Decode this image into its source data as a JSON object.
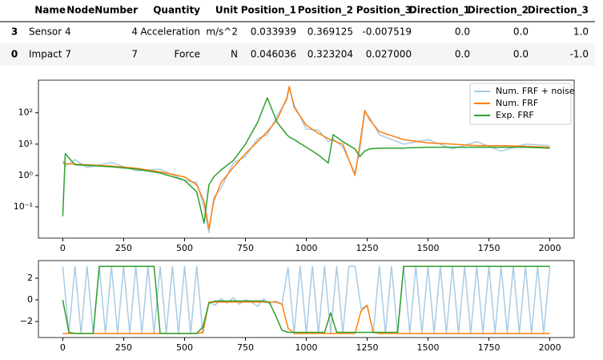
{
  "table": {
    "columns": [
      "Name",
      "NodeNumber",
      "Quantity",
      "Unit",
      "Position_1",
      "Position_2",
      "Position_3",
      "Direction_1",
      "Direction_2",
      "Direction_3"
    ],
    "rows": [
      {
        "index": "3",
        "cells": [
          "Sensor 4",
          "4",
          "Acceleration",
          "m/s^2",
          "0.033939",
          "0.369125",
          "-0.007519",
          "0.0",
          "0.0",
          "1.0"
        ]
      },
      {
        "index": "0",
        "cells": [
          "Impact 7",
          "7",
          "Force",
          "N",
          "0.046036",
          "0.323204",
          "0.027000",
          "0.0",
          "0.0",
          "-1.0"
        ]
      }
    ]
  },
  "chart_data": [
    {
      "type": "line",
      "yscale": "log",
      "legend": "upper right",
      "xlim": [
        -100,
        2100
      ],
      "ylim": [
        0.01,
        1100
      ],
      "xticks": [
        0,
        250,
        500,
        750,
        1000,
        1250,
        1500,
        1750,
        2000
      ],
      "yticks": [
        {
          "value": 0.1,
          "label": "10⁻¹"
        },
        {
          "value": 1,
          "label": "10⁰"
        },
        {
          "value": 10,
          "label": "10¹"
        },
        {
          "value": 100,
          "label": "10²"
        }
      ],
      "x": [
        0,
        10,
        50,
        100,
        200,
        300,
        400,
        500,
        550,
        580,
        600,
        620,
        650,
        700,
        750,
        800,
        840,
        880,
        920,
        930,
        950,
        1000,
        1050,
        1090,
        1110,
        1150,
        1200,
        1220,
        1240,
        1260,
        1300,
        1400,
        1500,
        1600,
        1700,
        1800,
        1900,
        2000
      ],
      "series": [
        {
          "name": "Num. FRF + noise",
          "color": "#a9cbe3",
          "values": [
            3.0,
            2.0,
            3.2,
            1.8,
            2.6,
            1.4,
            1.6,
            0.7,
            0.6,
            0.1,
            0.015,
            0.2,
            0.4,
            2.5,
            4,
            15,
            20,
            80,
            250,
            650,
            180,
            30,
            28,
            12,
            15,
            8,
            1.2,
            7,
            100,
            70,
            20,
            10,
            14,
            7,
            12,
            6,
            10,
            9
          ]
        },
        {
          "name": "Num. FRF",
          "color": "#ff7f0e",
          "values": [
            2.5,
            2.4,
            2.3,
            2.2,
            2.0,
            1.7,
            1.3,
            0.9,
            0.5,
            0.15,
            0.02,
            0.15,
            0.6,
            1.8,
            5,
            12,
            25,
            60,
            300,
            700,
            150,
            40,
            22,
            15,
            13,
            10,
            1.0,
            10,
            120,
            60,
            25,
            14,
            11,
            10,
            9,
            9,
            8.5,
            8
          ]
        },
        {
          "name": "Exp. FRF",
          "color": "#2ca02c",
          "values": [
            0.05,
            5,
            2.2,
            2.1,
            1.9,
            1.6,
            1.2,
            0.7,
            0.3,
            0.03,
            0.5,
            0.9,
            1.5,
            3,
            10,
            50,
            300,
            50,
            20,
            17,
            14,
            8,
            4.5,
            2.5,
            20,
            12,
            7,
            4,
            6,
            7,
            7.5,
            7.5,
            8,
            8,
            8,
            8,
            8,
            7.5
          ]
        }
      ]
    },
    {
      "type": "line",
      "xlim": [
        -100,
        2100
      ],
      "ylim": [
        -3.48,
        3.63
      ],
      "xticks": [
        0,
        250,
        500,
        750,
        1000,
        1250,
        1500,
        1750,
        2000
      ],
      "yticks": [
        {
          "value": -2,
          "label": "−2"
        },
        0,
        2
      ],
      "x": [
        0,
        25,
        50,
        75,
        100,
        125,
        150,
        175,
        200,
        225,
        250,
        275,
        300,
        325,
        350,
        375,
        400,
        425,
        450,
        475,
        500,
        525,
        550,
        575,
        600,
        625,
        650,
        675,
        700,
        725,
        750,
        775,
        800,
        825,
        850,
        875,
        900,
        925,
        950,
        975,
        1000,
        1025,
        1050,
        1075,
        1100,
        1125,
        1150,
        1175,
        1200,
        1225,
        1250,
        1275,
        1300,
        1325,
        1350,
        1375,
        1400,
        1425,
        1450,
        1475,
        1500,
        1525,
        1550,
        1575,
        1600,
        1625,
        1650,
        1675,
        1700,
        1725,
        1750,
        1775,
        1800,
        1825,
        1850,
        1875,
        1900,
        1925,
        1950,
        1975,
        2000
      ],
      "series": [
        {
          "color": "#a9cbe3",
          "values": [
            3.1,
            -3.1,
            3.1,
            -3.1,
            3.1,
            -3.1,
            3.1,
            -3.1,
            3.1,
            -3.1,
            3.1,
            -3.1,
            3.1,
            -3.1,
            3.1,
            -3.1,
            3.1,
            -3.1,
            3.1,
            -3.1,
            3.1,
            -3.1,
            3.1,
            -3.1,
            -0.2,
            -0.5,
            0.1,
            -0.3,
            0.2,
            -0.4,
            0,
            -0.2,
            -0.6,
            0.1,
            -0.3,
            -0.1,
            -0.4,
            3.0,
            -3.1,
            3.1,
            -3.1,
            3.1,
            -3.1,
            3.1,
            -3.1,
            3.1,
            -3.1,
            3.1,
            3.1,
            -0.8,
            -0.5,
            -3.1,
            3.1,
            -3.1,
            3.1,
            -3.1,
            3.1,
            -3.1,
            3.1,
            -3.1,
            3.1,
            -3.1,
            3.1,
            -3.1,
            3.1,
            -3.1,
            3.1,
            -3.1,
            3.1,
            -3.1,
            3.1,
            -3.1,
            3.1,
            -3.1,
            3.1,
            -3.1,
            3.1,
            -3.1,
            3.1,
            -3.1,
            3.1
          ]
        },
        {
          "color": "#ff7f0e",
          "values": [
            -3.1,
            -3.1,
            -3.1,
            -3.1,
            -3.1,
            -3.1,
            -3.1,
            -3.1,
            -3.1,
            -3.1,
            -3.1,
            -3.1,
            -3.1,
            -3.1,
            -3.1,
            -3.1,
            -3.1,
            -3.1,
            -3.1,
            -3.1,
            -3.1,
            -3.1,
            -3.1,
            -3.0,
            -0.2,
            -0.2,
            -0.2,
            -0.2,
            -0.2,
            -0.2,
            -0.2,
            -0.2,
            -0.2,
            -0.2,
            -0.2,
            -0.2,
            -0.4,
            -2.6,
            -3.1,
            -3.1,
            -3.1,
            -3.1,
            -3.1,
            -3.1,
            -3.1,
            -3.1,
            -3.1,
            -3.1,
            -3.1,
            -1.0,
            -0.5,
            -3.0,
            -3.1,
            -3.1,
            -3.1,
            -3.1,
            -3.1,
            -3.1,
            -3.1,
            -3.1,
            -3.1,
            -3.1,
            -3.1,
            -3.1,
            -3.1,
            -3.1,
            -3.1,
            -3.1,
            -3.1,
            -3.1,
            -3.1,
            -3.1,
            -3.1,
            -3.1,
            -3.1,
            -3.1,
            -3.1,
            -3.1,
            -3.1,
            -3.1,
            -3.1
          ]
        },
        {
          "color": "#2ca02c",
          "values": [
            0,
            -3.0,
            -3.1,
            -3.1,
            -3.1,
            -3.1,
            3.1,
            3.1,
            3.1,
            3.1,
            3.1,
            3.1,
            3.1,
            3.1,
            3.1,
            3.1,
            -3.1,
            -3.1,
            -3.1,
            -3.1,
            -3.1,
            -3.1,
            -3.1,
            -2.5,
            -0.3,
            -0.1,
            -0.1,
            -0.1,
            -0.1,
            -0.1,
            -0.1,
            -0.1,
            -0.1,
            -0.1,
            -0.3,
            -1.5,
            -2.8,
            -3.0,
            -3.0,
            -3.0,
            -3.0,
            -3.0,
            -3.0,
            -3.0,
            -1.2,
            -3.0,
            -3.0,
            -3.0,
            -3.0,
            -3.0,
            -3.0,
            -3.0,
            -3.0,
            -3.0,
            -3.0,
            -3.0,
            3.1,
            3.1,
            3.1,
            3.1,
            3.1,
            3.1,
            3.1,
            3.1,
            3.1,
            3.1,
            3.1,
            3.1,
            3.1,
            3.1,
            3.1,
            3.1,
            3.1,
            3.1,
            3.1,
            3.1,
            3.1,
            3.1,
            3.1,
            3.1,
            3.1
          ]
        }
      ]
    }
  ]
}
